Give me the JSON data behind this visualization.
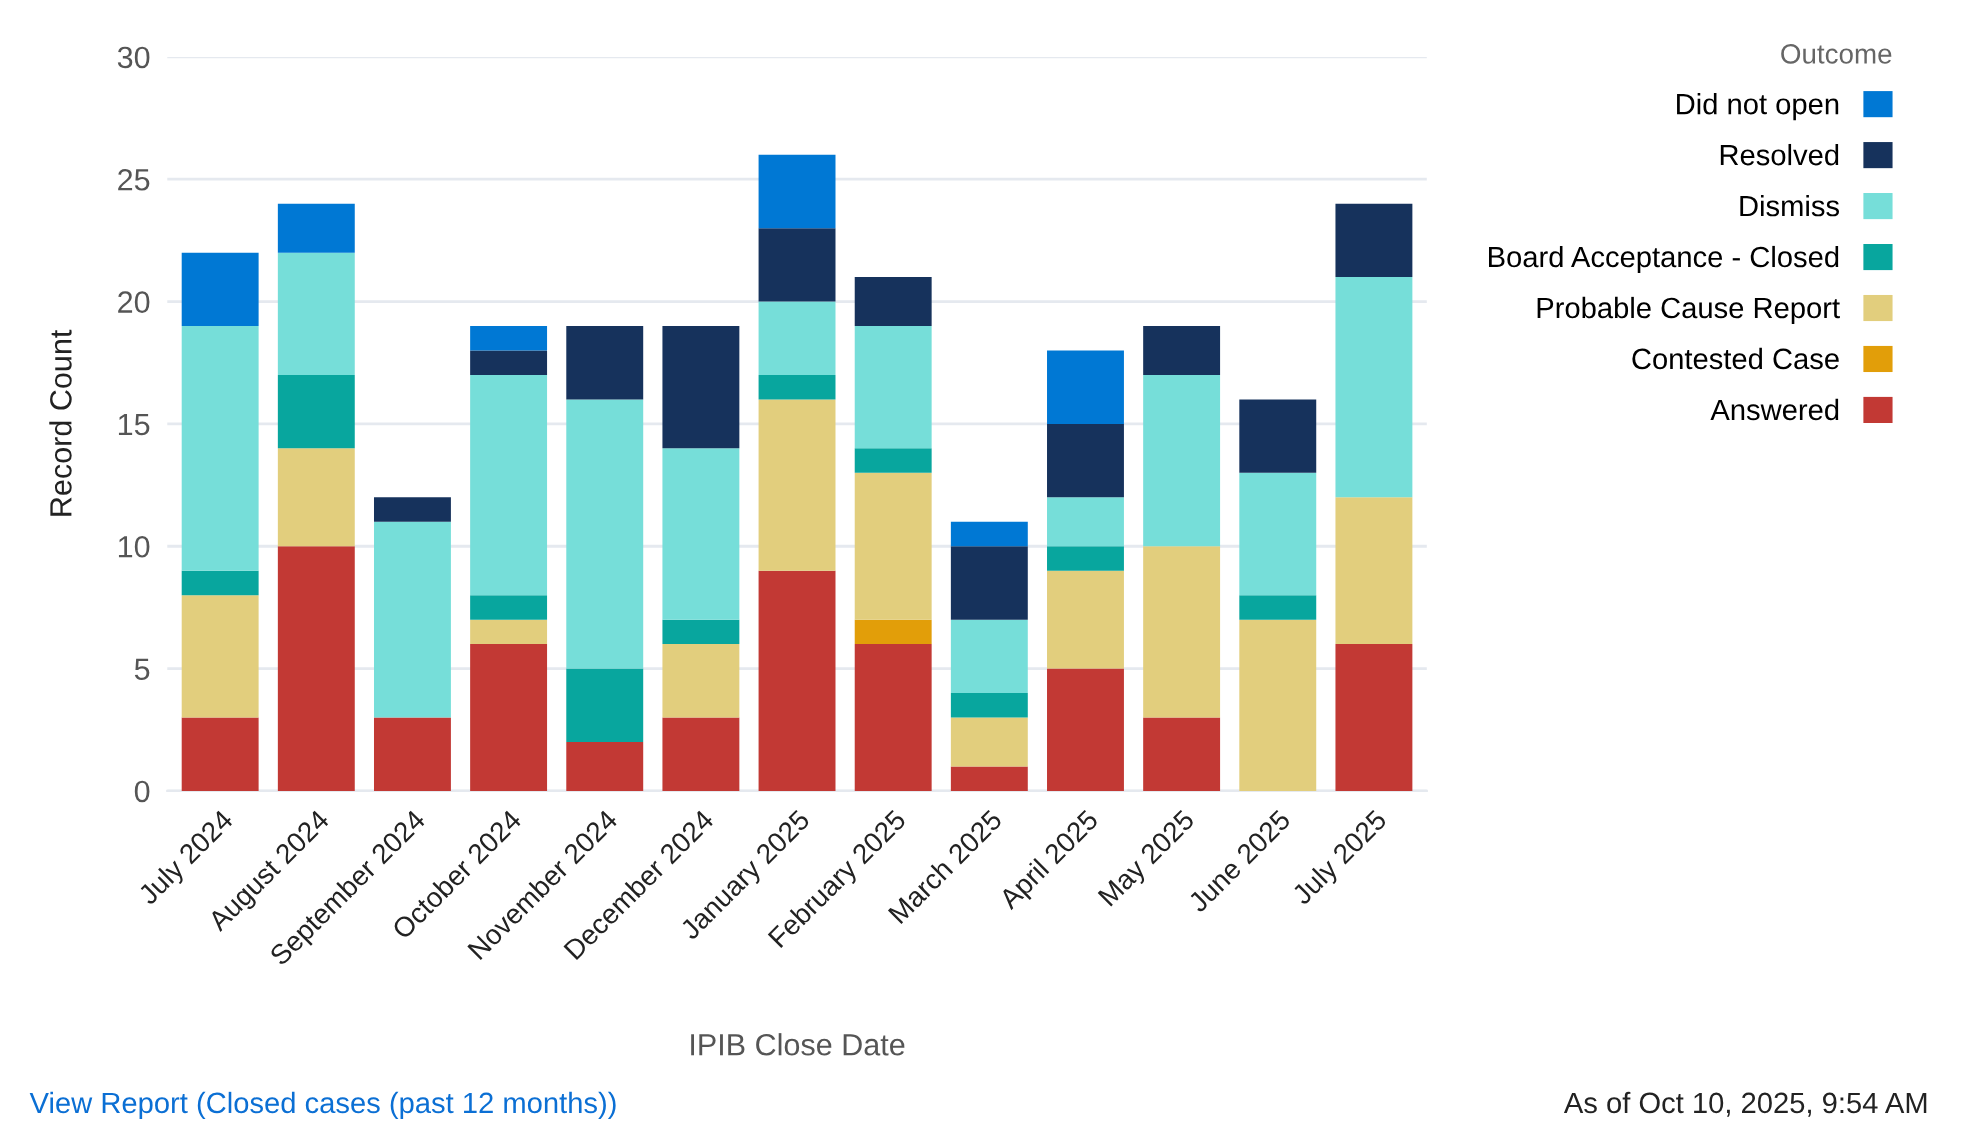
{
  "chart_data": {
    "type": "bar",
    "stacked": true,
    "xlabel": "IPIB Close Date",
    "ylabel": "Record Count",
    "legend_title": "Outcome",
    "categories": [
      "July 2024",
      "August 2024",
      "September 2024",
      "October 2024",
      "November 2024",
      "December 2024",
      "January 2025",
      "February 2025",
      "March 2025",
      "April 2025",
      "May 2025",
      "June 2025",
      "July 2025"
    ],
    "series": [
      {
        "name": "Answered",
        "color": "#c23934",
        "values": [
          3,
          10,
          3,
          6,
          2,
          3,
          9,
          6,
          1,
          5,
          3,
          0,
          6
        ]
      },
      {
        "name": "Contested Case",
        "color": "#e29e09",
        "values": [
          0,
          0,
          0,
          0,
          0,
          0,
          0,
          1,
          0,
          0,
          0,
          0,
          0
        ]
      },
      {
        "name": "Probable Cause Report",
        "color": "#e2ce7d",
        "values": [
          5,
          4,
          0,
          1,
          0,
          3,
          7,
          6,
          2,
          4,
          7,
          7,
          6
        ]
      },
      {
        "name": "Board Acceptance - Closed",
        "color": "#08a69e",
        "values": [
          1,
          3,
          0,
          1,
          3,
          1,
          1,
          1,
          1,
          1,
          0,
          1,
          0
        ]
      },
      {
        "name": "Dismiss",
        "color": "#76ded9",
        "values": [
          10,
          5,
          8,
          9,
          11,
          7,
          3,
          5,
          3,
          2,
          7,
          5,
          9
        ]
      },
      {
        "name": "Resolved",
        "color": "#16325c",
        "values": [
          0,
          0,
          1,
          1,
          3,
          5,
          3,
          2,
          3,
          3,
          2,
          3,
          3
        ]
      },
      {
        "name": "Did not open",
        "color": "#0078d4",
        "values": [
          3,
          2,
          0,
          1,
          0,
          0,
          3,
          0,
          1,
          3,
          0,
          0,
          0
        ]
      }
    ],
    "ylim": [
      0,
      30
    ],
    "yticks": [
      0,
      5,
      10,
      15,
      20,
      25,
      30
    ],
    "grid": "y",
    "legend": "top right",
    "annotations": [
      "View Report (Closed cases (past 12 months))",
      "As of Oct 10, 2025, 9:54 AM"
    ]
  }
}
